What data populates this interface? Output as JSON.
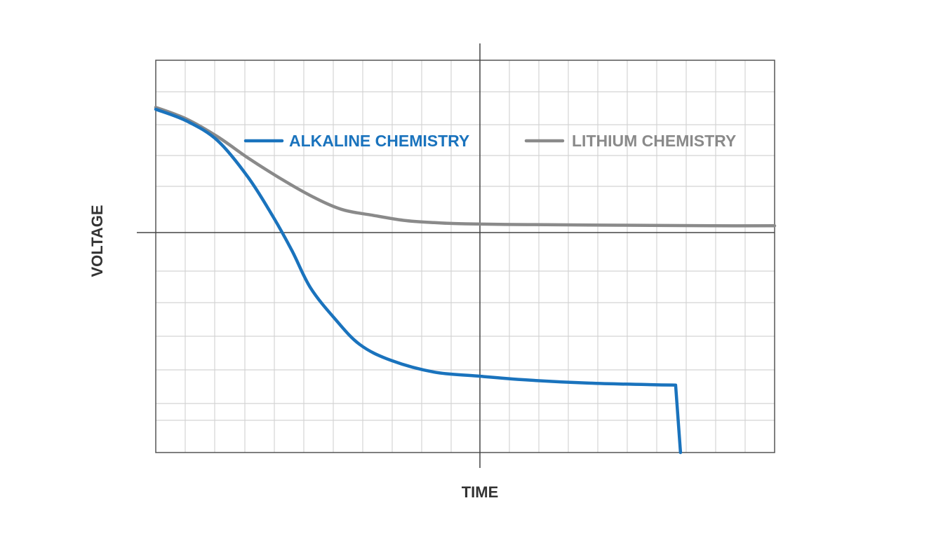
{
  "chart_data": {
    "type": "line",
    "xlabel": "TIME",
    "ylabel": "VOLTAGE",
    "xlim": [
      0,
      100
    ],
    "ylim": [
      0,
      100
    ],
    "grid": true,
    "legend_position": "top",
    "series": [
      {
        "name": "ALKALINE CHEMISTRY",
        "color": "#1a73bd",
        "points": [
          [
            0,
            87.5
          ],
          [
            5,
            84.5
          ],
          [
            10,
            79.5
          ],
          [
            15,
            70
          ],
          [
            19,
            60
          ],
          [
            22,
            51.5
          ],
          [
            25,
            42
          ],
          [
            29,
            34
          ],
          [
            33,
            27.5
          ],
          [
            38,
            23.5
          ],
          [
            45,
            20.5
          ],
          [
            52,
            19.5
          ],
          [
            60,
            18.5
          ],
          [
            70,
            17.7
          ],
          [
            80,
            17.3
          ],
          [
            84,
            17.2
          ],
          [
            84.8,
            0
          ]
        ]
      },
      {
        "name": "LITHIUM CHEMISTRY",
        "color": "#8a8a8a",
        "points": [
          [
            0,
            88
          ],
          [
            5,
            85
          ],
          [
            10,
            80.5
          ],
          [
            15,
            75
          ],
          [
            20,
            70
          ],
          [
            25,
            65.5
          ],
          [
            30,
            62
          ],
          [
            35,
            60.5
          ],
          [
            40,
            59.2
          ],
          [
            45,
            58.6
          ],
          [
            50,
            58.3
          ],
          [
            60,
            58.1
          ],
          [
            70,
            58
          ],
          [
            80,
            57.9
          ],
          [
            90,
            57.8
          ],
          [
            100,
            57.8
          ]
        ]
      }
    ],
    "colors": {
      "grid_minor": "#d4d4d4",
      "frame": "#555555",
      "crosshair": "#444444"
    }
  }
}
